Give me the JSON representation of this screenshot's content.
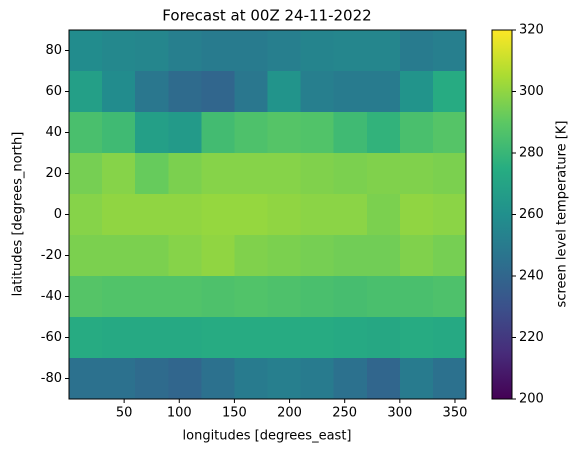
{
  "chart_data": {
    "type": "heatmap",
    "title": "Forecast at 00Z 24-11-2022",
    "x_label": "longitudes [degrees_east]",
    "y_label": "latitudes [degrees_north]",
    "colorbar_label": "screen level temperature [K]",
    "colormap": "viridis",
    "x": [
      15,
      45,
      75,
      105,
      135,
      165,
      195,
      225,
      255,
      285,
      315,
      345
    ],
    "y": [
      80,
      60,
      40,
      20,
      0,
      -20,
      -40,
      -60,
      -80
    ],
    "values": [
      [
        258,
        256,
        255,
        252,
        250,
        250,
        252,
        254,
        255,
        255,
        250,
        252
      ],
      [
        268,
        258,
        248,
        242,
        240,
        248,
        262,
        252,
        250,
        250,
        262,
        274
      ],
      [
        285,
        282,
        268,
        265,
        283,
        286,
        288,
        287,
        282,
        278,
        285,
        288
      ],
      [
        295,
        298,
        292,
        296,
        298,
        298,
        298,
        297,
        296,
        297,
        297,
        296
      ],
      [
        298,
        300,
        300,
        300,
        301,
        301,
        300,
        299,
        299,
        296,
        300,
        299
      ],
      [
        296,
        296,
        296,
        298,
        300,
        297,
        296,
        295,
        294,
        294,
        297,
        295
      ],
      [
        288,
        287,
        287,
        287,
        286,
        287,
        286,
        285,
        284,
        285,
        285,
        286
      ],
      [
        274,
        273,
        273,
        273,
        274,
        274,
        274,
        274,
        273,
        272,
        274,
        273
      ],
      [
        245,
        245,
        242,
        240,
        245,
        250,
        252,
        250,
        245,
        240,
        250,
        245
      ]
    ],
    "xlim": [
      0,
      360
    ],
    "ylim": [
      -90,
      90
    ],
    "xticks": [
      50,
      100,
      150,
      200,
      250,
      300,
      350
    ],
    "yticks": [
      -80,
      -60,
      -40,
      -20,
      0,
      20,
      40,
      60,
      80
    ],
    "clim": [
      200,
      320
    ],
    "cticks": [
      200,
      220,
      240,
      260,
      280,
      300,
      320
    ]
  }
}
